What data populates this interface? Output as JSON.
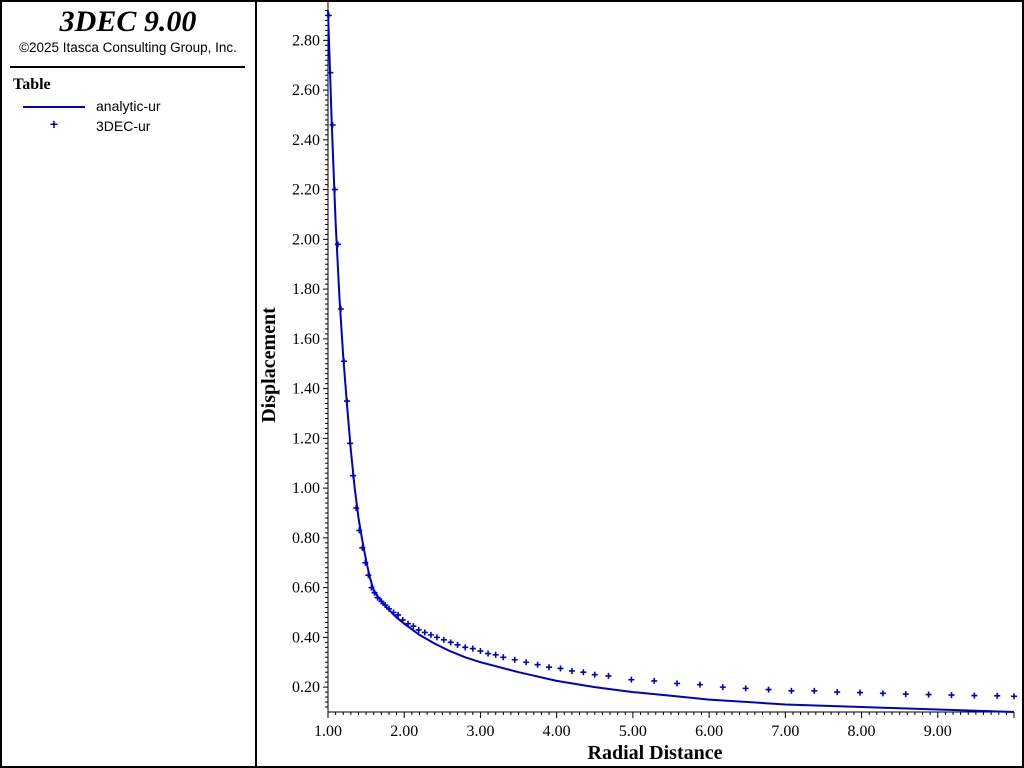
{
  "app": {
    "title": "3DEC 9.00",
    "copyright": "©2025 Itasca Consulting Group, Inc."
  },
  "legend": {
    "title": "Table",
    "items": [
      {
        "label": "analytic-ur",
        "style": "line",
        "color": "#0000cc"
      },
      {
        "label": "3DEC-ur",
        "style": "marker",
        "marker": "+",
        "color": "#0000cc"
      }
    ]
  },
  "chart_data": {
    "type": "line",
    "xlabel": "Radial Distance",
    "ylabel": "Displacement",
    "xlim": [
      1.0,
      10.0
    ],
    "ylim": [
      0.1,
      2.93
    ],
    "xticks": [
      "1.00",
      "2.00",
      "3.00",
      "4.00",
      "5.00",
      "6.00",
      "7.00",
      "8.00",
      "9.00"
    ],
    "yticks": [
      "0.20",
      "0.40",
      "0.60",
      "0.80",
      "1.00",
      "1.20",
      "1.40",
      "1.60",
      "1.80",
      "2.00",
      "2.20",
      "2.40",
      "2.60",
      "2.80"
    ],
    "grid": false,
    "legend_position": "left panel",
    "series": [
      {
        "name": "analytic-ur",
        "style": "line",
        "color": "#0000cc",
        "x": [
          1.0,
          1.05,
          1.1,
          1.15,
          1.2,
          1.25,
          1.3,
          1.35,
          1.4,
          1.45,
          1.5,
          1.55,
          1.6,
          1.65,
          1.7,
          1.8,
          1.9,
          2.0,
          2.2,
          2.4,
          2.6,
          2.8,
          3.0,
          3.5,
          4.0,
          4.5,
          5.0,
          5.5,
          6.0,
          6.5,
          7.0,
          7.5,
          8.0,
          8.5,
          9.0,
          9.5,
          10.0
        ],
        "y": [
          2.92,
          2.46,
          2.07,
          1.77,
          1.53,
          1.33,
          1.15,
          1.0,
          0.88,
          0.79,
          0.71,
          0.64,
          0.59,
          0.565,
          0.545,
          0.51,
          0.48,
          0.455,
          0.41,
          0.375,
          0.345,
          0.32,
          0.3,
          0.26,
          0.225,
          0.2,
          0.18,
          0.165,
          0.15,
          0.14,
          0.13,
          0.125,
          0.12,
          0.115,
          0.11,
          0.105,
          0.1
        ]
      },
      {
        "name": "3DEC-ur",
        "style": "marker",
        "marker": "+",
        "color": "#0000cc",
        "x": [
          1.01,
          1.03,
          1.06,
          1.09,
          1.13,
          1.17,
          1.21,
          1.25,
          1.29,
          1.33,
          1.37,
          1.41,
          1.45,
          1.49,
          1.53,
          1.57,
          1.61,
          1.65,
          1.7,
          1.75,
          1.8,
          1.86,
          1.92,
          1.98,
          2.05,
          2.12,
          2.19,
          2.27,
          2.35,
          2.43,
          2.52,
          2.61,
          2.7,
          2.8,
          2.9,
          3.0,
          3.1,
          3.2,
          3.3,
          3.45,
          3.6,
          3.75,
          3.9,
          4.05,
          4.2,
          4.35,
          4.5,
          4.68,
          4.98,
          5.28,
          5.58,
          5.88,
          6.18,
          6.48,
          6.78,
          7.08,
          7.38,
          7.68,
          7.98,
          8.28,
          8.58,
          8.88,
          9.18,
          9.48,
          9.78,
          10.0
        ],
        "y": [
          2.9,
          2.67,
          2.46,
          2.2,
          1.98,
          1.72,
          1.51,
          1.35,
          1.18,
          1.05,
          0.92,
          0.83,
          0.76,
          0.7,
          0.65,
          0.6,
          0.58,
          0.56,
          0.545,
          0.53,
          0.515,
          0.5,
          0.49,
          0.47,
          0.455,
          0.445,
          0.43,
          0.42,
          0.41,
          0.4,
          0.39,
          0.38,
          0.37,
          0.36,
          0.355,
          0.345,
          0.335,
          0.33,
          0.32,
          0.31,
          0.3,
          0.29,
          0.28,
          0.275,
          0.265,
          0.26,
          0.25,
          0.245,
          0.23,
          0.225,
          0.215,
          0.21,
          0.2,
          0.195,
          0.19,
          0.185,
          0.185,
          0.18,
          0.178,
          0.175,
          0.172,
          0.17,
          0.168,
          0.166,
          0.165,
          0.163
        ]
      }
    ]
  }
}
